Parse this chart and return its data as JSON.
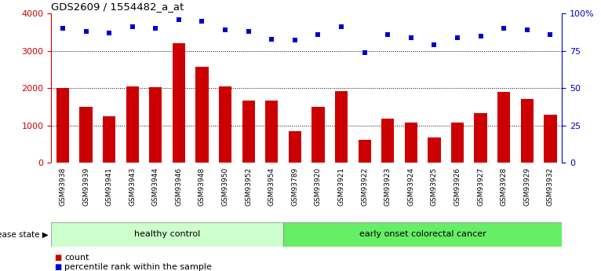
{
  "title": "GDS2609 / 1554482_a_at",
  "samples": [
    "GSM93938",
    "GSM93939",
    "GSM93941",
    "GSM93943",
    "GSM93944",
    "GSM93946",
    "GSM93948",
    "GSM93950",
    "GSM93952",
    "GSM93954",
    "GSM93789",
    "GSM93920",
    "GSM93921",
    "GSM93922",
    "GSM93923",
    "GSM93924",
    "GSM93925",
    "GSM93926",
    "GSM93927",
    "GSM93928",
    "GSM93929",
    "GSM93932"
  ],
  "counts": [
    2000,
    1500,
    1250,
    2050,
    2020,
    3200,
    2580,
    2050,
    1660,
    1660,
    850,
    1490,
    1920,
    620,
    1170,
    1080,
    680,
    1080,
    1330,
    1900,
    1700,
    1290
  ],
  "percentiles": [
    90,
    88,
    87,
    91,
    90,
    96,
    95,
    89,
    88,
    83,
    82,
    86,
    91,
    74,
    86,
    84,
    79,
    84,
    85,
    90,
    89,
    86
  ],
  "bar_color": "#cc0000",
  "dot_color": "#0000cc",
  "ylim_left": [
    0,
    4000
  ],
  "ylim_right": [
    0,
    100
  ],
  "yticks_left": [
    0,
    1000,
    2000,
    3000,
    4000
  ],
  "ytick_labels_left": [
    "0",
    "1000",
    "2000",
    "3000",
    "4000"
  ],
  "yticks_right": [
    0,
    25,
    50,
    75,
    100
  ],
  "ytick_labels_right": [
    "0",
    "25",
    "50",
    "75",
    "100%"
  ],
  "group1_label": "healthy control",
  "group2_label": "early onset colorectal cancer",
  "group1_count": 10,
  "group2_count": 12,
  "disease_state_label": "disease state",
  "legend_count_label": "count",
  "legend_percentile_label": "percentile rank within the sample",
  "grid_dotted_values": [
    1000,
    2000,
    3000
  ],
  "group1_color": "#ccffcc",
  "group2_color": "#66ee66",
  "xtick_bg_color": "#cccccc",
  "background_color": "#ffffff"
}
